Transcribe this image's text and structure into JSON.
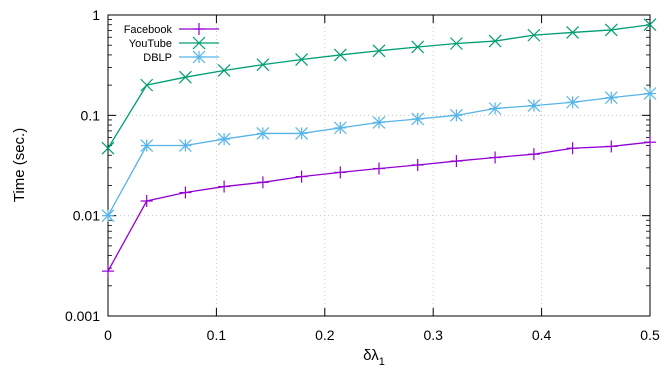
{
  "chart_data": {
    "type": "line",
    "title": "",
    "xlabel": "δλ",
    "xlabel_sub": "1",
    "ylabel": "Time (sec.)",
    "yscale": "log",
    "xlim": [
      0,
      0.5
    ],
    "ylim": [
      0.001,
      1
    ],
    "grid": true,
    "legend_position": "top-left",
    "x_ticks": [
      0,
      0.1,
      0.2,
      0.3,
      0.4,
      0.5
    ],
    "x_tick_labels": [
      "0",
      "0.1",
      "0.2",
      "0.3",
      "0.4",
      "0.5"
    ],
    "y_ticks": [
      0.001,
      0.01,
      0.1,
      1
    ],
    "y_tick_labels": [
      "0.001",
      "0.01",
      "0.1",
      "1"
    ],
    "x": [
      0,
      0.0357,
      0.0714,
      0.1071,
      0.1429,
      0.1786,
      0.2143,
      0.25,
      0.2857,
      0.3214,
      0.3571,
      0.3929,
      0.4286,
      0.4643,
      0.5
    ],
    "series": [
      {
        "name": "Facebook",
        "color": "#9400d3",
        "marker": "plus",
        "values": [
          0.0028,
          0.014,
          0.017,
          0.0195,
          0.0215,
          0.0245,
          0.027,
          0.0295,
          0.032,
          0.035,
          0.038,
          0.041,
          0.047,
          0.049,
          0.054
        ]
      },
      {
        "name": "YouTube",
        "color": "#009e73",
        "marker": "cross",
        "values": [
          0.047,
          0.2,
          0.24,
          0.28,
          0.32,
          0.36,
          0.4,
          0.44,
          0.48,
          0.52,
          0.55,
          0.63,
          0.67,
          0.71,
          0.8
        ]
      },
      {
        "name": "DBLP",
        "color": "#56b4e9",
        "marker": "star",
        "values": [
          0.01,
          0.05,
          0.05,
          0.058,
          0.066,
          0.066,
          0.075,
          0.085,
          0.092,
          0.1,
          0.117,
          0.125,
          0.135,
          0.15,
          0.165
        ]
      }
    ]
  }
}
